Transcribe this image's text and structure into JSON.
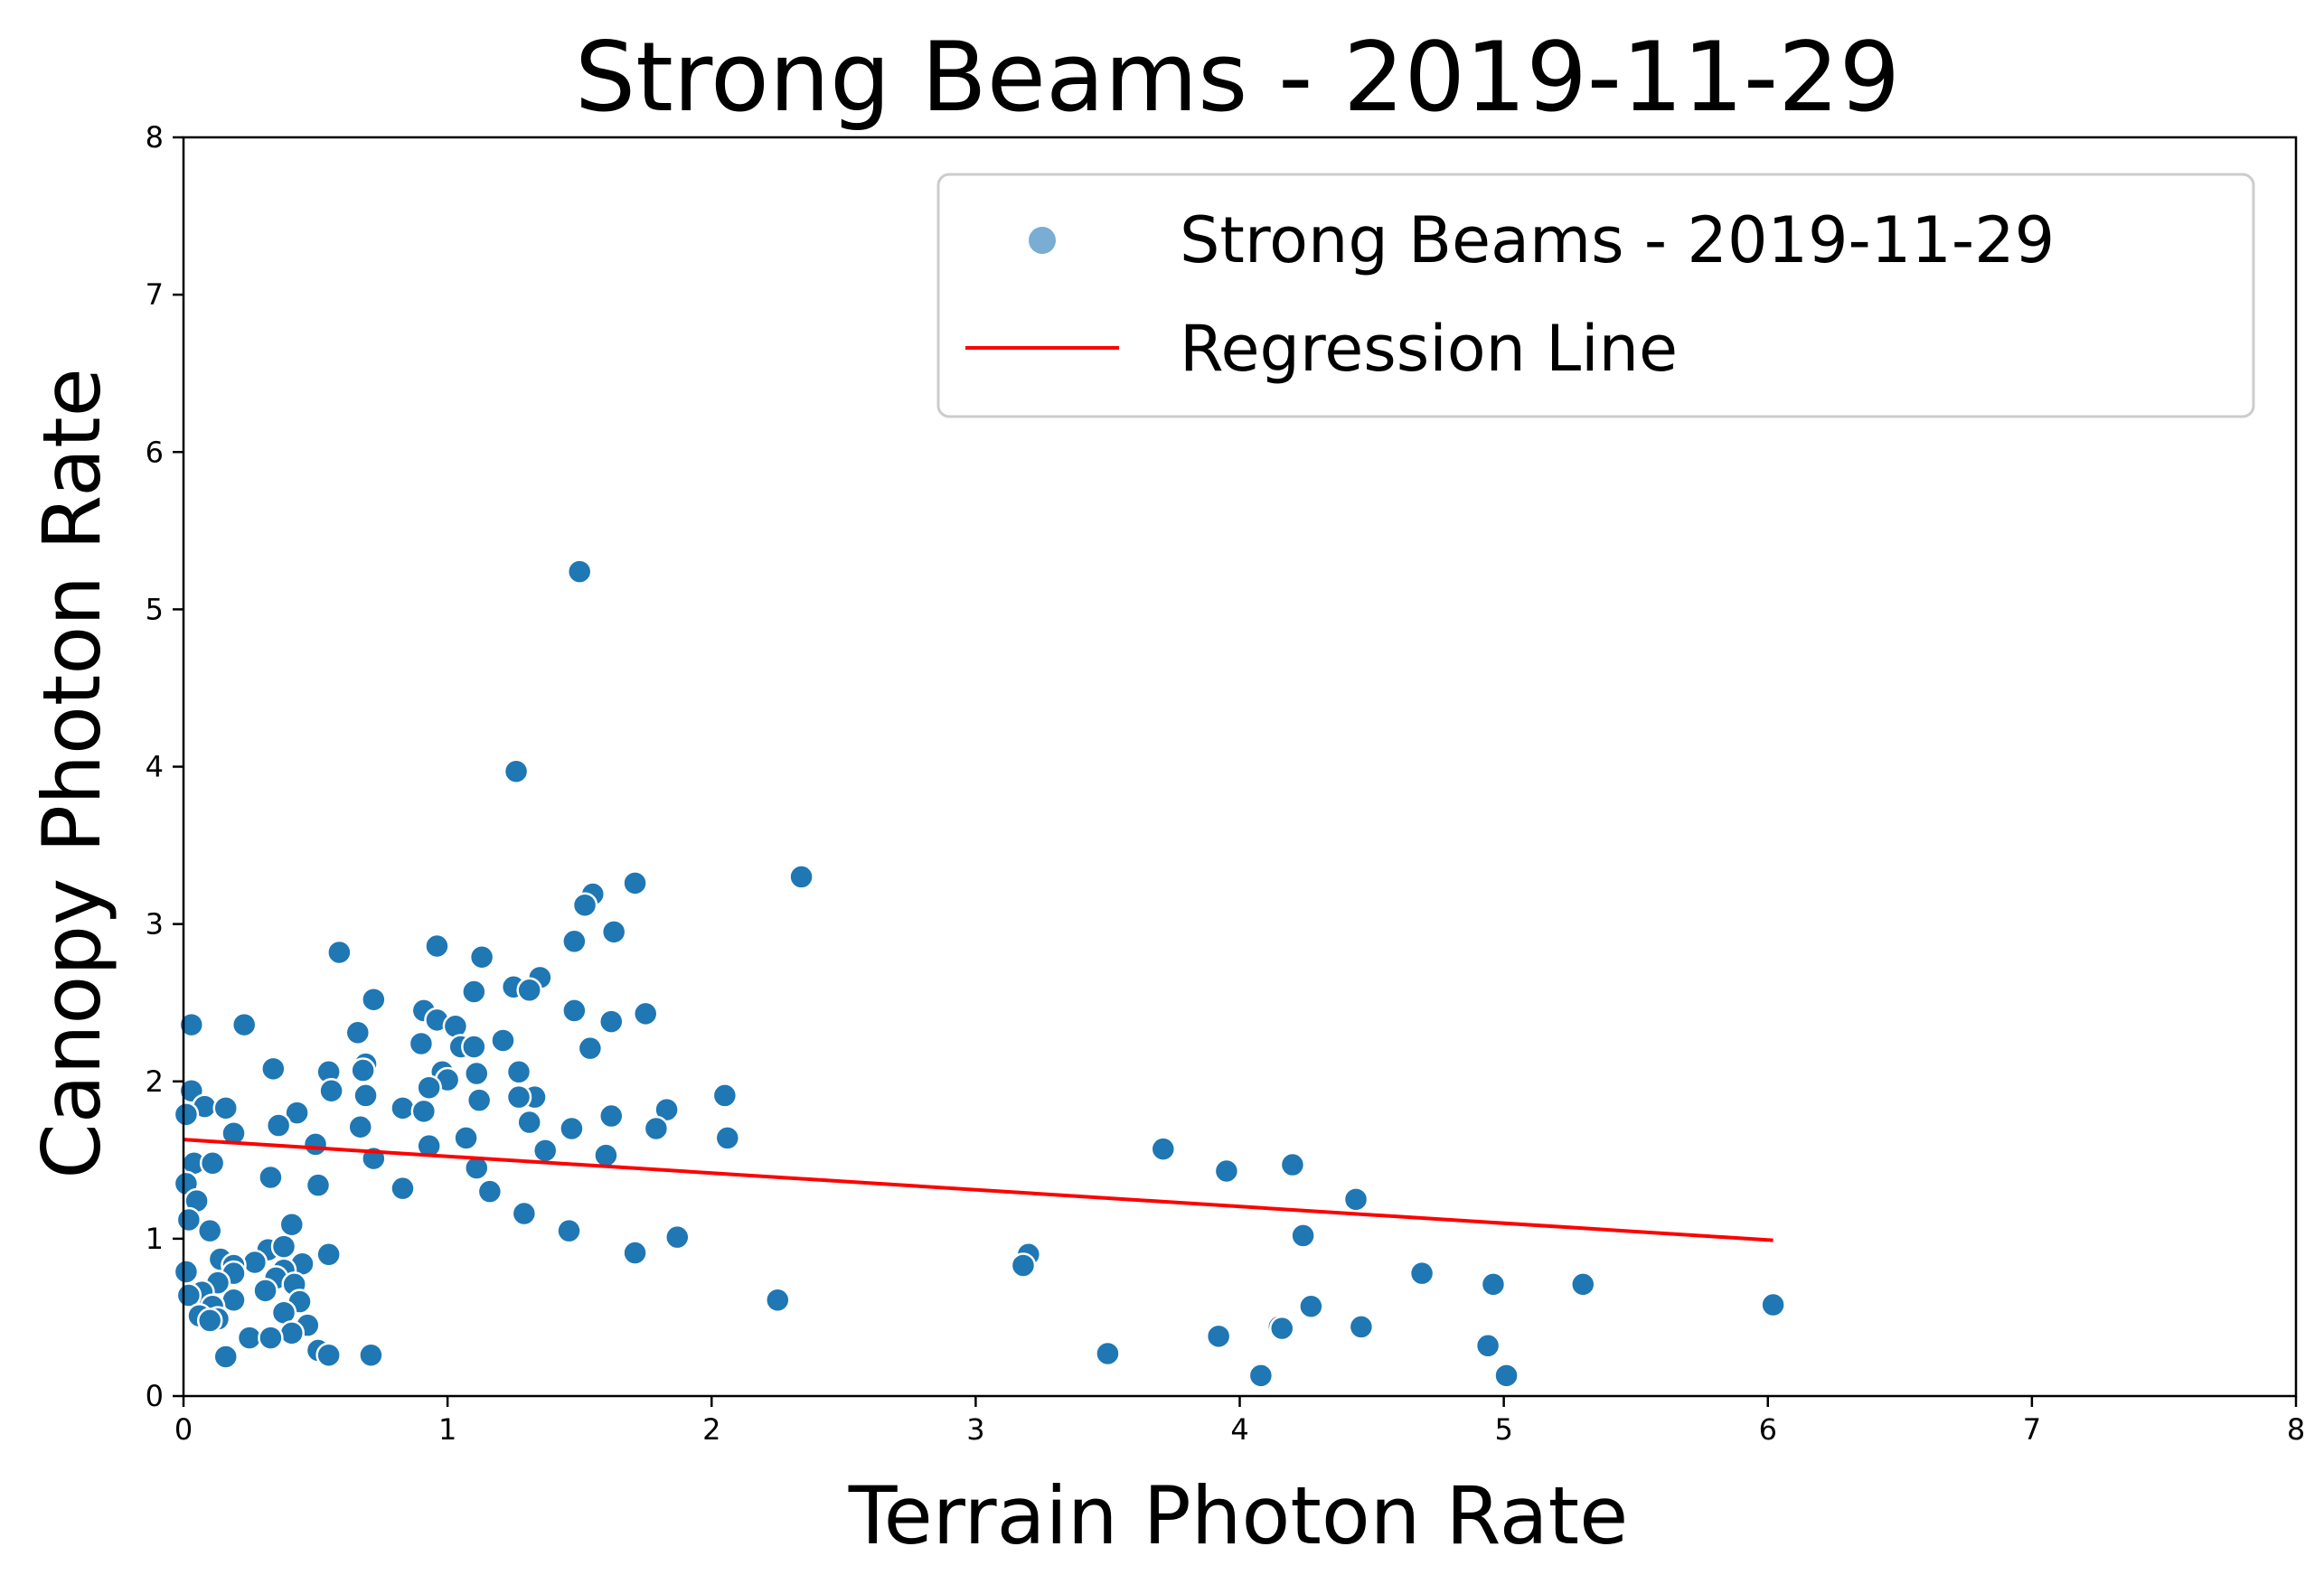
{
  "chart_data": {
    "type": "scatter",
    "title": "Strong Beams - 2019-11-29",
    "xlabel": "Terrain Photon Rate",
    "ylabel": "Canopy Photon Rate",
    "xlim": [
      0,
      8
    ],
    "ylim": [
      0,
      8
    ],
    "xticks": [
      "0",
      "1",
      "2",
      "3",
      "4",
      "5",
      "6",
      "7",
      "8"
    ],
    "yticks": [
      "0",
      "1",
      "2",
      "3",
      "4",
      "5",
      "6",
      "7",
      "8"
    ],
    "grid": false,
    "legend_placement": "upper-right",
    "point_color": "#1f77b4",
    "line_color": "#ff0000",
    "series": [
      {
        "name": "Strong Beams - 2019-11-29",
        "kind": "scatter",
        "points": [
          [
            1.5,
            5.24
          ],
          [
            1.26,
            3.97
          ],
          [
            2.34,
            3.3
          ],
          [
            1.71,
            3.26
          ],
          [
            1.55,
            3.19
          ],
          [
            1.52,
            3.12
          ],
          [
            1.63,
            2.95
          ],
          [
            1.48,
            2.89
          ],
          [
            0.96,
            2.86
          ],
          [
            0.59,
            2.82
          ],
          [
            1.13,
            2.79
          ],
          [
            1.35,
            2.66
          ],
          [
            1.25,
            2.6
          ],
          [
            1.31,
            2.58
          ],
          [
            1.1,
            2.57
          ],
          [
            0.72,
            2.52
          ],
          [
            0.91,
            2.45
          ],
          [
            1.48,
            2.45
          ],
          [
            1.75,
            2.43
          ],
          [
            0.96,
            2.39
          ],
          [
            1.62,
            2.38
          ],
          [
            0.03,
            2.36
          ],
          [
            0.23,
            2.36
          ],
          [
            1.03,
            2.35
          ],
          [
            0.66,
            2.31
          ],
          [
            1.21,
            2.26
          ],
          [
            0.9,
            2.24
          ],
          [
            1.05,
            2.22
          ],
          [
            1.1,
            2.22
          ],
          [
            1.54,
            2.21
          ],
          [
            0.69,
            2.11
          ],
          [
            0.68,
            2.07
          ],
          [
            0.34,
            2.08
          ],
          [
            0.55,
            2.06
          ],
          [
            0.98,
            2.06
          ],
          [
            1.27,
            2.06
          ],
          [
            1.11,
            2.05
          ],
          [
            1.0,
            2.01
          ],
          [
            0.93,
            1.96
          ],
          [
            0.56,
            1.94
          ],
          [
            0.03,
            1.94
          ],
          [
            0.69,
            1.91
          ],
          [
            1.33,
            1.9
          ],
          [
            2.05,
            1.91
          ],
          [
            1.27,
            1.9
          ],
          [
            1.12,
            1.88
          ],
          [
            0.08,
            1.84
          ],
          [
            0.16,
            1.83
          ],
          [
            0.83,
            1.83
          ],
          [
            1.83,
            1.82
          ],
          [
            0.91,
            1.81
          ],
          [
            0.43,
            1.8
          ],
          [
            0.01,
            1.79
          ],
          [
            1.62,
            1.78
          ],
          [
            1.31,
            1.74
          ],
          [
            0.36,
            1.72
          ],
          [
            0.67,
            1.71
          ],
          [
            1.47,
            1.7
          ],
          [
            1.79,
            1.7
          ],
          [
            0.19,
            1.67
          ],
          [
            1.07,
            1.64
          ],
          [
            2.06,
            1.64
          ],
          [
            0.5,
            1.6
          ],
          [
            0.93,
            1.59
          ],
          [
            3.71,
            1.57
          ],
          [
            1.37,
            1.56
          ],
          [
            1.6,
            1.53
          ],
          [
            0.72,
            1.51
          ],
          [
            0.04,
            1.48
          ],
          [
            0.11,
            1.48
          ],
          [
            4.2,
            1.47
          ],
          [
            1.11,
            1.45
          ],
          [
            3.95,
            1.43
          ],
          [
            0.33,
            1.39
          ],
          [
            0.01,
            1.35
          ],
          [
            0.51,
            1.34
          ],
          [
            0.83,
            1.32
          ],
          [
            1.16,
            1.3
          ],
          [
            4.44,
            1.25
          ],
          [
            0.05,
            1.24
          ],
          [
            1.29,
            1.16
          ],
          [
            0.02,
            1.12
          ],
          [
            0.41,
            1.09
          ],
          [
            0.1,
            1.05
          ],
          [
            1.46,
            1.05
          ],
          [
            4.24,
            1.02
          ],
          [
            1.87,
            1.01
          ],
          [
            0.32,
            0.93
          ],
          [
            0.38,
            0.95
          ],
          [
            3.2,
            0.9
          ],
          [
            1.71,
            0.91
          ],
          [
            0.55,
            0.9
          ],
          [
            0.14,
            0.87
          ],
          [
            0.27,
            0.85
          ],
          [
            0.45,
            0.84
          ],
          [
            0.19,
            0.83
          ],
          [
            3.18,
            0.83
          ],
          [
            0.38,
            0.8
          ],
          [
            0.01,
            0.79
          ],
          [
            0.19,
            0.78
          ],
          [
            4.69,
            0.78
          ],
          [
            0.35,
            0.75
          ],
          [
            0.13,
            0.72
          ],
          [
            0.42,
            0.71
          ],
          [
            4.96,
            0.71
          ],
          [
            5.3,
            0.71
          ],
          [
            0.31,
            0.67
          ],
          [
            0.07,
            0.66
          ],
          [
            0.02,
            0.64
          ],
          [
            0.19,
            0.61
          ],
          [
            0.44,
            0.6
          ],
          [
            2.25,
            0.61
          ],
          [
            6.02,
            0.58
          ],
          [
            4.27,
            0.57
          ],
          [
            0.11,
            0.57
          ],
          [
            0.38,
            0.53
          ],
          [
            0.06,
            0.51
          ],
          [
            0.13,
            0.49
          ],
          [
            0.1,
            0.48
          ],
          [
            0.47,
            0.45
          ],
          [
            4.15,
            0.44
          ],
          [
            4.46,
            0.44
          ],
          [
            4.16,
            0.43
          ],
          [
            0.41,
            0.4
          ],
          [
            0.25,
            0.37
          ],
          [
            0.33,
            0.37
          ],
          [
            3.92,
            0.38
          ],
          [
            4.94,
            0.32
          ],
          [
            0.51,
            0.29
          ],
          [
            3.5,
            0.27
          ],
          [
            0.55,
            0.26
          ],
          [
            0.71,
            0.26
          ],
          [
            0.16,
            0.25
          ],
          [
            4.08,
            0.13
          ],
          [
            5.01,
            0.13
          ]
        ]
      },
      {
        "name": "Regression Line",
        "kind": "line",
        "points": [
          [
            0.0,
            1.63
          ],
          [
            6.02,
            0.99
          ]
        ]
      }
    ]
  }
}
